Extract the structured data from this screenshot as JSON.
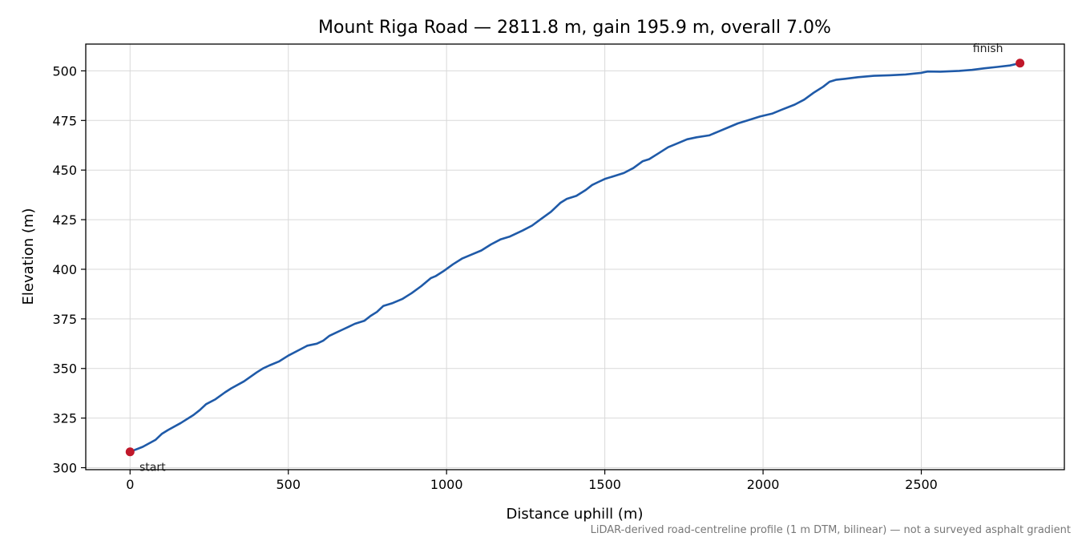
{
  "chart_data": {
    "type": "line",
    "title": "Mount Riga Road — 2811.8 m, gain 195.9 m, overall 7.0%",
    "xlabel": "Distance uphill (m)",
    "ylabel": "Elevation (m)",
    "xlim": [
      -140,
      2952
    ],
    "ylim": [
      299,
      513.5
    ],
    "xticks": [
      0,
      500,
      1000,
      1500,
      2000,
      2500
    ],
    "yticks": [
      300,
      325,
      350,
      375,
      400,
      425,
      450,
      475,
      500
    ],
    "grid": true,
    "series": [
      {
        "color": "#1f5aa8",
        "points": [
          [
            0,
            308
          ],
          [
            40,
            310.5
          ],
          [
            80,
            314
          ],
          [
            100,
            317
          ],
          [
            120,
            319
          ],
          [
            160,
            322.5
          ],
          [
            200,
            326.5
          ],
          [
            220,
            329
          ],
          [
            240,
            332
          ],
          [
            270,
            334.5
          ],
          [
            300,
            338
          ],
          [
            320,
            340
          ],
          [
            360,
            343.5
          ],
          [
            400,
            348
          ],
          [
            420,
            350
          ],
          [
            440,
            351.5
          ],
          [
            470,
            353.5
          ],
          [
            500,
            356.5
          ],
          [
            530,
            359
          ],
          [
            560,
            361.5
          ],
          [
            590,
            362.5
          ],
          [
            610,
            364
          ],
          [
            630,
            366.5
          ],
          [
            650,
            368
          ],
          [
            670,
            369.5
          ],
          [
            690,
            371
          ],
          [
            710,
            372.5
          ],
          [
            740,
            374
          ],
          [
            760,
            376.5
          ],
          [
            780,
            378.5
          ],
          [
            800,
            381.5
          ],
          [
            830,
            383
          ],
          [
            860,
            385
          ],
          [
            890,
            388
          ],
          [
            920,
            391.5
          ],
          [
            950,
            395.5
          ],
          [
            965,
            396.5
          ],
          [
            990,
            399
          ],
          [
            1020,
            402.5
          ],
          [
            1050,
            405.5
          ],
          [
            1080,
            407.5
          ],
          [
            1110,
            409.5
          ],
          [
            1140,
            412.5
          ],
          [
            1170,
            415
          ],
          [
            1200,
            416.5
          ],
          [
            1240,
            419.5
          ],
          [
            1270,
            422
          ],
          [
            1300,
            425.5
          ],
          [
            1330,
            429
          ],
          [
            1360,
            433.5
          ],
          [
            1380,
            435.5
          ],
          [
            1410,
            437
          ],
          [
            1440,
            440
          ],
          [
            1460,
            442.5
          ],
          [
            1480,
            444
          ],
          [
            1500,
            445.5
          ],
          [
            1530,
            447
          ],
          [
            1560,
            448.5
          ],
          [
            1590,
            451
          ],
          [
            1620,
            454.5
          ],
          [
            1640,
            455.5
          ],
          [
            1670,
            458.5
          ],
          [
            1700,
            461.5
          ],
          [
            1730,
            463.5
          ],
          [
            1760,
            465.5
          ],
          [
            1790,
            466.5
          ],
          [
            1830,
            467.5
          ],
          [
            1860,
            469.5
          ],
          [
            1890,
            471.5
          ],
          [
            1920,
            473.5
          ],
          [
            1960,
            475.5
          ],
          [
            1990,
            477
          ],
          [
            2030,
            478.5
          ],
          [
            2060,
            480.5
          ],
          [
            2100,
            483
          ],
          [
            2130,
            485.5
          ],
          [
            2160,
            489
          ],
          [
            2190,
            492
          ],
          [
            2210,
            494.5
          ],
          [
            2230,
            495.5
          ],
          [
            2260,
            496
          ],
          [
            2300,
            496.8
          ],
          [
            2350,
            497.5
          ],
          [
            2400,
            497.8
          ],
          [
            2450,
            498.2
          ],
          [
            2500,
            499
          ],
          [
            2520,
            499.7
          ],
          [
            2560,
            499.6
          ],
          [
            2620,
            500
          ],
          [
            2660,
            500.5
          ],
          [
            2700,
            501.3
          ],
          [
            2740,
            502
          ],
          [
            2780,
            502.7
          ],
          [
            2811.8,
            503.9
          ]
        ]
      }
    ],
    "markers": [
      {
        "label": "start",
        "x": 0,
        "y": 308,
        "color": "#c0182a"
      },
      {
        "label": "finish",
        "x": 2811.8,
        "y": 503.9,
        "color": "#c0182a"
      }
    ],
    "note": "LiDAR-derived road-centreline profile (1 m DTM, bilinear) — not a surveyed asphalt gradient"
  }
}
